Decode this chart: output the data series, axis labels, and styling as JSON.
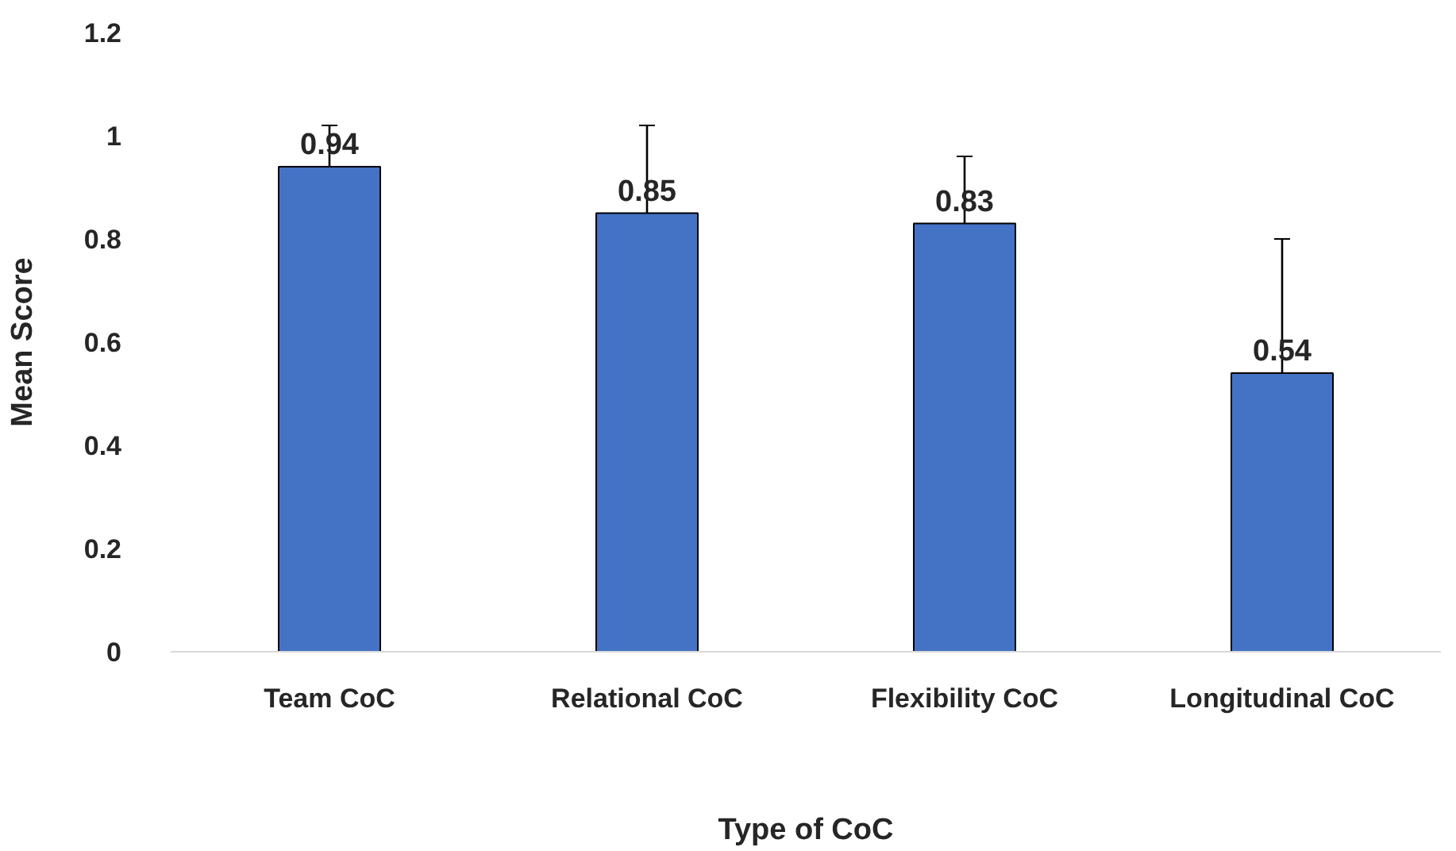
{
  "chart_data": {
    "type": "bar",
    "xlabel": "Type of CoC",
    "ylabel": "Mean Score",
    "categories": [
      "Team CoC",
      "Relational CoC",
      "Flexibility CoC",
      "Longitudinal CoC"
    ],
    "values": [
      0.94,
      0.85,
      0.83,
      0.54
    ],
    "errors": [
      0.08,
      0.17,
      0.13,
      0.26
    ],
    "color": "#4472c4",
    "ylim": [
      0,
      1.2
    ],
    "yticks": [
      0,
      0.2,
      0.4,
      0.6,
      0.8,
      1,
      1.2
    ],
    "grid": false,
    "data_labels": true
  }
}
